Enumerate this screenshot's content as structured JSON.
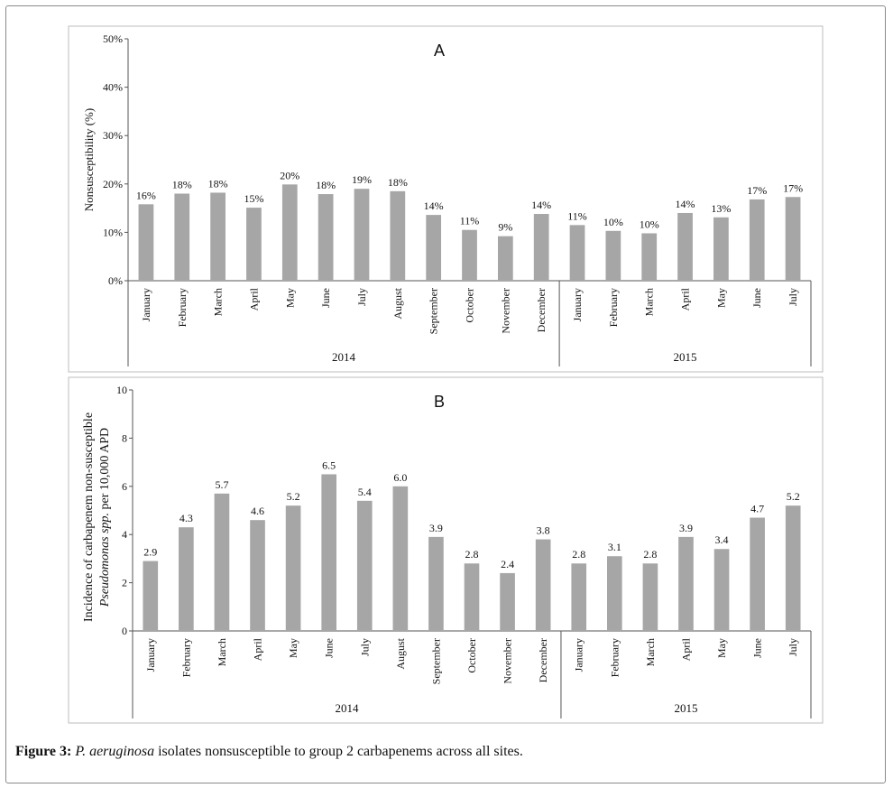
{
  "chart_data": [
    {
      "type": "bar",
      "panel_label": "A",
      "ylabel": "Nonsusceptibility (%)",
      "ylim": [
        0,
        50
      ],
      "yticks": [
        0,
        10,
        20,
        30,
        40,
        50
      ],
      "ytick_labels": [
        "0%",
        "10%",
        "20%",
        "30%",
        "40%",
        "50%"
      ],
      "categories": [
        "January",
        "February",
        "March",
        "April",
        "May",
        "June",
        "July",
        "August",
        "September",
        "October",
        "November",
        "December",
        "January",
        "February",
        "March",
        "April",
        "May",
        "June",
        "July"
      ],
      "values": [
        15.8,
        18,
        18.2,
        15.1,
        19.9,
        17.9,
        19,
        18.5,
        13.6,
        10.5,
        9.2,
        13.8,
        11.5,
        10.3,
        9.8,
        14,
        13.1,
        16.8,
        17.3
      ],
      "value_labels": [
        "16%",
        "18%",
        "18%",
        "15%",
        "20%",
        "18%",
        "19%",
        "18%",
        "14%",
        "11%",
        "9%",
        "14%",
        "11%",
        "10%",
        "10%",
        "14%",
        "13%",
        "17%",
        "17%"
      ],
      "groups": [
        {
          "label": "2014",
          "count": 12
        },
        {
          "label": "2015",
          "count": 7
        }
      ],
      "bar_color": "#a6a6a6",
      "grid": false
    },
    {
      "type": "bar",
      "panel_label": "B",
      "ylabel_line1": "Incidence of carbapenem non-susceptible",
      "ylabel_line2_italic": "Pseudomonas spp.",
      "ylabel_line2_rest": " per 10,000 APD",
      "ylim": [
        0,
        10
      ],
      "yticks": [
        0,
        2,
        4,
        6,
        8,
        10
      ],
      "ytick_labels": [
        "0",
        "2",
        "4",
        "6",
        "8",
        "10"
      ],
      "categories": [
        "January",
        "February",
        "March",
        "April",
        "May",
        "June",
        "July",
        "August",
        "September",
        "October",
        "November",
        "December",
        "January",
        "February",
        "March",
        "April",
        "May",
        "June",
        "July"
      ],
      "values": [
        2.9,
        4.3,
        5.7,
        4.6,
        5.2,
        6.5,
        5.4,
        6.0,
        3.9,
        2.8,
        2.4,
        3.8,
        2.8,
        3.1,
        2.8,
        3.9,
        3.4,
        4.7,
        5.2
      ],
      "value_labels": [
        "2.9",
        "4.3",
        "5.7",
        "4.6",
        "5.2",
        "6.5",
        "5.4",
        "6.0",
        "3.9",
        "2.8",
        "2.4",
        "3.8",
        "2.8",
        "3.1",
        "2.8",
        "3.9",
        "3.4",
        "4.7",
        "5.2"
      ],
      "groups": [
        {
          "label": "2014",
          "count": 12
        },
        {
          "label": "2015",
          "count": 7
        }
      ],
      "bar_color": "#a6a6a6",
      "grid": false
    }
  ],
  "caption": {
    "figure_label": "Figure 3:",
    "species": "P. aeruginosa",
    "text": " isolates nonsusceptible to group 2 carbapenems across all sites."
  }
}
